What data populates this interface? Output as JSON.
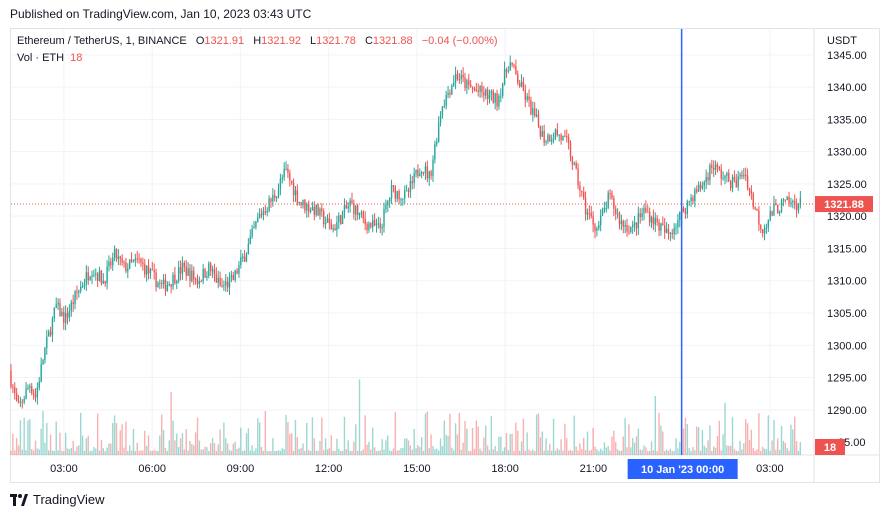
{
  "published": "Published on TradingView.com, Jan 10, 2023 03:43 UTC",
  "legend": {
    "symbol": "Ethereum / TetherUS, 1, BINANCE",
    "o_label": "O",
    "o_value": "1321.91",
    "h_label": "H",
    "h_value": "1321.92",
    "l_label": "L",
    "l_value": "1321.78",
    "c_label": "C",
    "c_value": "1321.88",
    "change": "−0.04 (−0.00%)"
  },
  "volume": {
    "label": "Vol · ETH",
    "value": "18"
  },
  "footer": {
    "brand": "TradingView"
  },
  "colors": {
    "up": "#26a69a",
    "down": "#ef5350",
    "crosshair": "#2962ff",
    "price_tag": "#ef5350"
  },
  "chart_data": {
    "type": "candlestick",
    "currency": "USDT",
    "y_ticks": [
      1290,
      1295,
      1300,
      1305,
      1310,
      1315,
      1320,
      1325,
      1330,
      1335,
      1340,
      1345
    ],
    "y_tick_labels": [
      "1290.00",
      "1295.00",
      "1300.00",
      "1305.00",
      "1310.00",
      "1315.00",
      "1320.00",
      "1325.00",
      "1330.00",
      "1335.00",
      "1340.00",
      "1345.00"
    ],
    "partial_tick_label": "85.00",
    "ylim": [
      1283,
      1349
    ],
    "x_ticks": [
      "03:00",
      "06:00",
      "09:00",
      "12:00",
      "15:00",
      "18:00",
      "21:00",
      "00:00",
      "03:00"
    ],
    "x_tick_hours": [
      3,
      6,
      9,
      12,
      15,
      18,
      21,
      24,
      27
    ],
    "xlim_hours": [
      1.2,
      28.5
    ],
    "crosshair_hour": 24,
    "crosshair_label": "10 Jan '23   00:00",
    "last_price": 1321.88,
    "last_price_label": "1321.88",
    "last_volume_label": "18",
    "price_path": [
      [
        1.2,
        1296
      ],
      [
        1.5,
        1290
      ],
      [
        1.9,
        1294
      ],
      [
        2.1,
        1292
      ],
      [
        2.4,
        1299
      ],
      [
        2.8,
        1306
      ],
      [
        3.1,
        1304
      ],
      [
        3.5,
        1308
      ],
      [
        4.0,
        1312
      ],
      [
        4.4,
        1310
      ],
      [
        4.8,
        1314
      ],
      [
        5.1,
        1312
      ],
      [
        5.6,
        1313
      ],
      [
        6.0,
        1311
      ],
      [
        6.4,
        1309
      ],
      [
        6.7,
        1310
      ],
      [
        7.1,
        1312
      ],
      [
        7.6,
        1310
      ],
      [
        8.0,
        1312
      ],
      [
        8.4,
        1309
      ],
      [
        8.8,
        1310
      ],
      [
        9.3,
        1315
      ],
      [
        9.7,
        1320
      ],
      [
        10.2,
        1323
      ],
      [
        10.6,
        1327
      ],
      [
        11.1,
        1322
      ],
      [
        11.6,
        1321
      ],
      [
        12.2,
        1318
      ],
      [
        12.8,
        1322
      ],
      [
        13.3,
        1319
      ],
      [
        13.8,
        1318
      ],
      [
        14.2,
        1324
      ],
      [
        14.7,
        1323
      ],
      [
        15.2,
        1328
      ],
      [
        15.5,
        1326
      ],
      [
        15.9,
        1337
      ],
      [
        16.4,
        1342
      ],
      [
        16.8,
        1340
      ],
      [
        17.3,
        1339
      ],
      [
        17.8,
        1338
      ],
      [
        18.2,
        1344
      ],
      [
        18.6,
        1340
      ],
      [
        19.0,
        1336
      ],
      [
        19.4,
        1332
      ],
      [
        19.8,
        1333
      ],
      [
        20.2,
        1331
      ],
      [
        20.5,
        1326
      ],
      [
        20.8,
        1321
      ],
      [
        21.2,
        1318
      ],
      [
        21.6,
        1323
      ],
      [
        22.0,
        1319
      ],
      [
        22.4,
        1318
      ],
      [
        22.8,
        1321
      ],
      [
        23.2,
        1319
      ],
      [
        23.6,
        1317
      ],
      [
        24.0,
        1320
      ],
      [
        24.4,
        1323
      ],
      [
        24.8,
        1325
      ],
      [
        25.1,
        1328
      ],
      [
        25.5,
        1326
      ],
      [
        25.9,
        1325
      ],
      [
        26.2,
        1327
      ],
      [
        26.5,
        1322
      ],
      [
        26.8,
        1318
      ],
      [
        27.2,
        1321
      ],
      [
        27.6,
        1322
      ],
      [
        28.1,
        1321.88
      ]
    ]
  }
}
